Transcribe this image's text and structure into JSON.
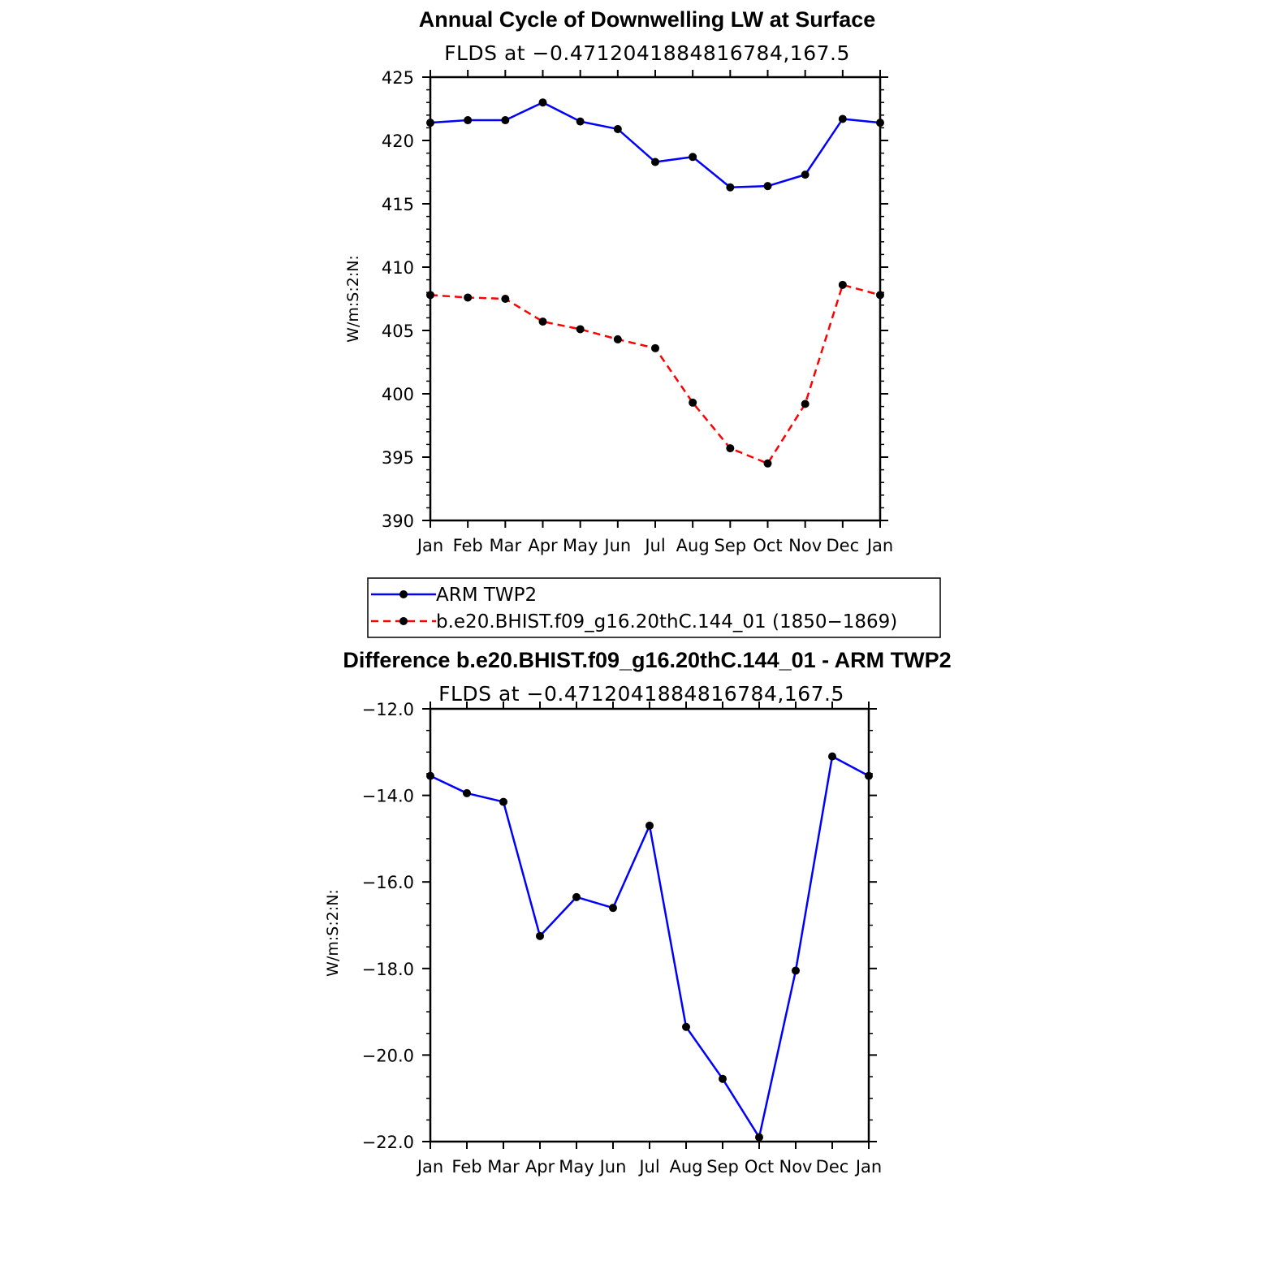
{
  "chart_data": [
    {
      "type": "line",
      "title": "Annual Cycle of Downwelling LW at Surface",
      "subtitle": "FLDS at −0.4712041884816784,167.5",
      "ylabel": "W/m:S:2:N:",
      "categories": [
        "Jan",
        "Feb",
        "Mar",
        "Apr",
        "May",
        "Jun",
        "Jul",
        "Aug",
        "Sep",
        "Oct",
        "Nov",
        "Dec",
        "Jan"
      ],
      "ylim": [
        390,
        425
      ],
      "yticks": [
        390,
        395,
        400,
        405,
        410,
        415,
        420,
        425
      ],
      "ytick_labels": [
        "390",
        "395",
        "400",
        "405",
        "410",
        "415",
        "420",
        "425"
      ],
      "series": [
        {
          "name": "ARM TWP2",
          "color": "#0000ff",
          "dash": "solid",
          "values": [
            421.4,
            421.6,
            421.6,
            423.0,
            421.5,
            420.9,
            418.3,
            418.7,
            416.3,
            416.4,
            417.3,
            421.7,
            421.4
          ]
        },
        {
          "name": "b.e20.BHIST.f09_g16.20thC.144_01 (1850−1869)",
          "color": "#ff0000",
          "dash": "dashed",
          "values": [
            407.8,
            407.6,
            407.5,
            405.7,
            405.1,
            404.3,
            403.6,
            399.3,
            395.7,
            394.5,
            399.2,
            408.6,
            407.8
          ]
        }
      ]
    },
    {
      "type": "line",
      "title": "Difference b.e20.BHIST.f09_g16.20thC.144_01 - ARM TWP2",
      "subtitle": "FLDS at −0.4712041884816784,167.5",
      "ylabel": "W/m:S:2:N:",
      "categories": [
        "Jan",
        "Feb",
        "Mar",
        "Apr",
        "May",
        "Jun",
        "Jul",
        "Aug",
        "Sep",
        "Oct",
        "Nov",
        "Dec",
        "Jan"
      ],
      "ylim": [
        -22.0,
        -12.0
      ],
      "yticks": [
        -22,
        -20,
        -18,
        -16,
        -14,
        -12
      ],
      "ytick_labels": [
        "−22.0",
        "−20.0",
        "−18.0",
        "−16.0",
        "−14.0",
        "−12.0"
      ],
      "series": [
        {
          "color": "#0000ff",
          "dash": "solid",
          "values": [
            -13.55,
            -13.95,
            -14.15,
            -17.25,
            -16.35,
            -16.6,
            -14.7,
            -19.35,
            -20.55,
            -21.9,
            -18.05,
            -13.1,
            -13.55
          ]
        }
      ]
    }
  ]
}
